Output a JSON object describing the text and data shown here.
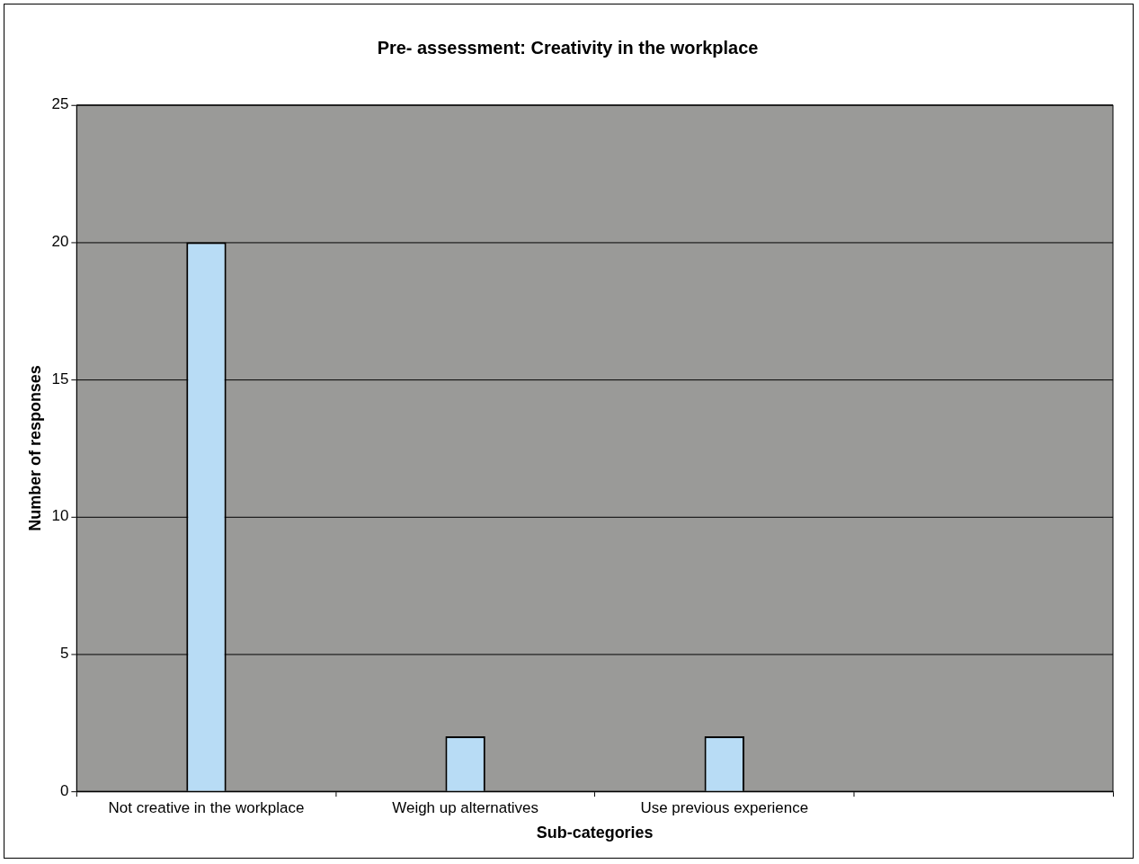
{
  "chart_data": {
    "type": "bar",
    "title": "Pre- assessment: Creativity in the workplace",
    "xlabel": "Sub-categories",
    "ylabel": "Number of responses",
    "categories": [
      "Not creative in the workplace",
      "Weigh up alternatives",
      "Use previous experience",
      null
    ],
    "values": [
      20,
      2,
      2,
      null
    ],
    "color": "#b8dcf5",
    "ylim": [
      0,
      25
    ],
    "yticks": [
      0,
      5,
      10,
      15,
      20,
      25
    ],
    "grid": "y"
  }
}
